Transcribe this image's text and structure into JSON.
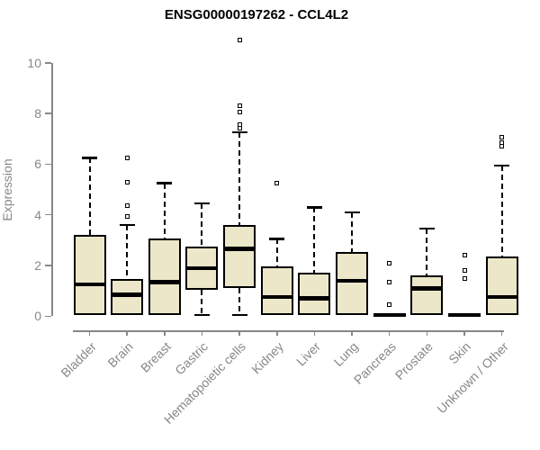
{
  "title": "ENSG00000197262 - CCL4L2",
  "chart_data": {
    "type": "boxplot",
    "title": "ENSG00000197262 - CCL4L2",
    "xlabel": "",
    "ylabel": "Expression",
    "ylim": [
      0,
      10
    ],
    "yticks": [
      0,
      2,
      4,
      6,
      8,
      10
    ],
    "grid": false,
    "legend": false,
    "colors": {
      "box_fill": "#ECE7C9",
      "box_border": "#000000",
      "axis": "#878787",
      "axis_text": "#878787",
      "title_text": "#000000"
    },
    "categories": [
      "Bladder",
      "Brain",
      "Breast",
      "Gastric",
      "Hematopoietic cells",
      "Kidney",
      "Liver",
      "Lung",
      "Pancreas",
      "Prostate",
      "Skin",
      "Unknown / Other"
    ],
    "series": [
      {
        "name": "Bladder",
        "low": 0.05,
        "q1": 0.05,
        "median": 1.25,
        "q3": 3.2,
        "high": 6.25,
        "outliers": []
      },
      {
        "name": "Brain",
        "low": 0.05,
        "q1": 0.05,
        "median": 0.85,
        "q3": 1.45,
        "high": 3.6,
        "outliers": [
          3.95,
          4.35,
          5.3,
          6.25
        ]
      },
      {
        "name": "Breast",
        "low": 0.05,
        "q1": 0.05,
        "median": 1.35,
        "q3": 3.05,
        "high": 5.25,
        "outliers": []
      },
      {
        "name": "Gastric",
        "low": 0.05,
        "q1": 1.05,
        "median": 1.9,
        "q3": 2.75,
        "high": 4.45,
        "outliers": []
      },
      {
        "name": "Hematopoietic cells",
        "low": 0.05,
        "q1": 1.1,
        "median": 2.65,
        "q3": 3.6,
        "high": 7.25,
        "outliers": [
          7.4,
          7.55,
          8.05,
          8.3,
          10.9
        ]
      },
      {
        "name": "Kidney",
        "low": 0.05,
        "q1": 0.05,
        "median": 0.75,
        "q3": 1.95,
        "high": 3.05,
        "outliers": [
          5.25
        ]
      },
      {
        "name": "Liver",
        "low": 0.05,
        "q1": 0.05,
        "median": 0.7,
        "q3": 1.7,
        "high": 4.3,
        "outliers": []
      },
      {
        "name": "Lung",
        "low": 0.05,
        "q1": 0.05,
        "median": 1.4,
        "q3": 2.55,
        "high": 4.1,
        "outliers": []
      },
      {
        "name": "Pancreas",
        "low": 0.0,
        "q1": 0.0,
        "median": 0.05,
        "q3": 0.1,
        "high": 0.1,
        "outliers": [
          0.45,
          1.35,
          2.1
        ]
      },
      {
        "name": "Prostate",
        "low": 0.05,
        "q1": 0.05,
        "median": 1.1,
        "q3": 1.6,
        "high": 3.45,
        "outliers": []
      },
      {
        "name": "Skin",
        "low": 0.0,
        "q1": 0.0,
        "median": 0.05,
        "q3": 0.1,
        "high": 0.1,
        "outliers": [
          1.5,
          1.8,
          2.4
        ]
      },
      {
        "name": "Unknown / Other",
        "low": 0.05,
        "q1": 0.05,
        "median": 0.75,
        "q3": 2.35,
        "high": 5.95,
        "outliers": [
          6.7,
          6.85,
          7.05
        ]
      }
    ]
  }
}
